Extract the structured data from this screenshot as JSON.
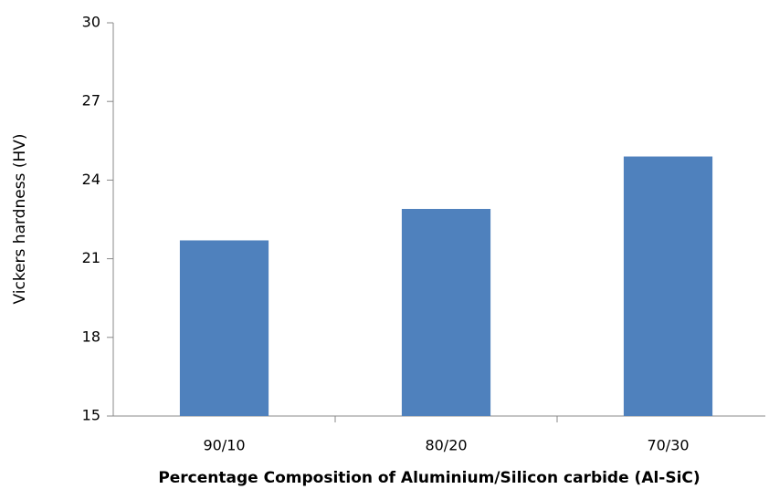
{
  "chart_data": {
    "type": "bar",
    "categories": [
      "90/10",
      "80/20",
      "70/30"
    ],
    "values": [
      21.7,
      22.9,
      24.9
    ],
    "color": "#4f81bd",
    "ylim": [
      15,
      30
    ],
    "yticks": [
      15,
      18,
      21,
      24,
      27,
      30
    ],
    "xlabel": "Percentage Composition of Aluminium/Silicon carbide (Al-SiC)",
    "ylabel": "Vickers hardness (HV)",
    "grid": false
  }
}
